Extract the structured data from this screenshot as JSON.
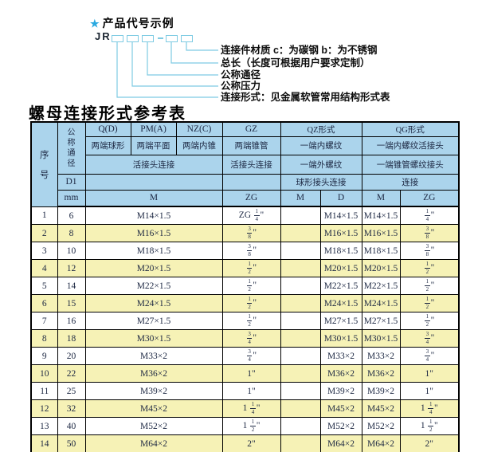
{
  "colors": {
    "header_bg": "#abd4ec",
    "row_alt_bg": "#f6f2b6",
    "diagram_line": "#7ecbe3",
    "star": "#2aa9e0",
    "text": "#1c2742"
  },
  "diagram": {
    "star": "★",
    "heading": "产品代号示例",
    "code_prefix": "JR",
    "labels": [
      "连接件材质  c：为碳钢  b：为不锈钢",
      "总长（长度可根据用户要求定制）",
      "公称通径",
      "公称压力",
      "连接形式：见金属软管常用结构形式表"
    ]
  },
  "table_title": "螺母连接形式参考表",
  "table": {
    "header": {
      "seq": "序号",
      "dn": "公称通径",
      "q": "Q(D)",
      "pm": "PM(A)",
      "nz": "NZ(C)",
      "gz": "GZ",
      "qz": "QZ形式",
      "qg": "QG形式",
      "q_type": "两端球形",
      "pm_type": "两端平面",
      "nz_type": "两端内锥",
      "gz_type": "两端锥管",
      "qz_type1": "一端内螺纹",
      "qg_type1": "一端内螺纹活接头",
      "union_conn": "活接头连接",
      "gz_conn": "活接头连接",
      "qz_type2": "一端外螺纹",
      "qg_type2": "一端锥管螺纹接头",
      "qz_conn": "球形接头连接",
      "qg_conn": "连接",
      "d1": "D1",
      "unit": "mm",
      "m": "M",
      "zg": "ZG",
      "qz_m": "M",
      "qz_d": "D",
      "qg_m": "M",
      "qg_zg": "ZG"
    },
    "rows": [
      {
        "no": "1",
        "dn": "6",
        "m": "M14×1.5",
        "gz": "ZG 1/4\"",
        "qz_m": "",
        "qz_d": "M14×1.5",
        "qg_m": "M14×1.5",
        "qg_zg": "1/4\""
      },
      {
        "no": "2",
        "dn": "8",
        "m": "M16×1.5",
        "gz": "3/8\"",
        "qz_m": "",
        "qz_d": "M16×1.5",
        "qg_m": "M16×1.5",
        "qg_zg": "3/8\""
      },
      {
        "no": "3",
        "dn": "10",
        "m": "M18×1.5",
        "gz": "3/8\"",
        "qz_m": "",
        "qz_d": "M18×1.5",
        "qg_m": "M18×1.5",
        "qg_zg": "3/8\""
      },
      {
        "no": "4",
        "dn": "12",
        "m": "M20×1.5",
        "gz": "1/2\"",
        "qz_m": "",
        "qz_d": "M20×1.5",
        "qg_m": "M20×1.5",
        "qg_zg": "1/2\""
      },
      {
        "no": "5",
        "dn": "14",
        "m": "M22×1.5",
        "gz": "1/2\"",
        "qz_m": "",
        "qz_d": "M22×1.5",
        "qg_m": "M22×1.5",
        "qg_zg": "1/2\""
      },
      {
        "no": "6",
        "dn": "15",
        "m": "M24×1.5",
        "gz": "1/2\"",
        "qz_m": "",
        "qz_d": "M24×1.5",
        "qg_m": "M24×1.5",
        "qg_zg": "1/2\""
      },
      {
        "no": "7",
        "dn": "16",
        "m": "M27×1.5",
        "gz": "1/2\"",
        "qz_m": "",
        "qz_d": "M27×1.5",
        "qg_m": "M27×1.5",
        "qg_zg": "1/2\""
      },
      {
        "no": "8",
        "dn": "18",
        "m": "M30×1.5",
        "gz": "3/4\"",
        "qz_m": "",
        "qz_d": "M30×1.5",
        "qg_m": "M30×1.5",
        "qg_zg": "3/4\""
      },
      {
        "no": "9",
        "dn": "20",
        "m": "M33×2",
        "gz": "3/4\"",
        "qz_m": "",
        "qz_d": "M33×2",
        "qg_m": "M33×2",
        "qg_zg": "3/4\""
      },
      {
        "no": "10",
        "dn": "22",
        "m": "M36×2",
        "gz": "1\"",
        "qz_m": "",
        "qz_d": "M36×2",
        "qg_m": "M36×2",
        "qg_zg": "1\""
      },
      {
        "no": "11",
        "dn": "25",
        "m": "M39×2",
        "gz": "1\"",
        "qz_m": "",
        "qz_d": "M39×2",
        "qg_m": "M39×2",
        "qg_zg": "1\""
      },
      {
        "no": "12",
        "dn": "32",
        "m": "M45×2",
        "gz": "1 1/4\"",
        "qz_m": "",
        "qz_d": "M45×2",
        "qg_m": "M45×2",
        "qg_zg": "1 1/4\""
      },
      {
        "no": "13",
        "dn": "40",
        "m": "M52×2",
        "gz": "1 1/2\"",
        "qz_m": "",
        "qz_d": "M52×2",
        "qg_m": "M52×2",
        "qg_zg": "1 1/2\""
      },
      {
        "no": "14",
        "dn": "50",
        "m": "M64×2",
        "gz": "2\"",
        "qz_m": "",
        "qz_d": "M64×2",
        "qg_m": "M64×2",
        "qg_zg": "2\""
      }
    ]
  }
}
